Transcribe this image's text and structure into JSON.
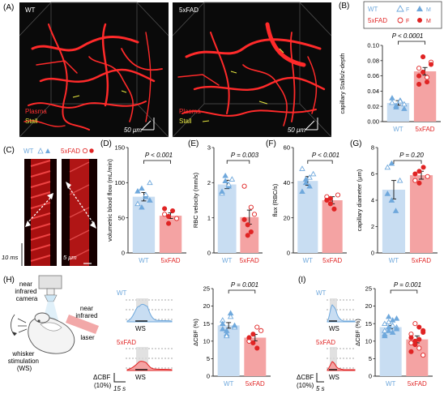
{
  "panels": {
    "A": "(A)",
    "B": "(B)",
    "C": "(C)",
    "D": "(D)",
    "E": "(E)",
    "F": "(F)",
    "G": "(G)",
    "H": "(H)",
    "I": "(I)"
  },
  "colors": {
    "wt": "#6fa8dc",
    "wt_light": "#c8ddf2",
    "fad": "#e02424",
    "fad_light": "#f4a3a3",
    "plasma": "#ff2222",
    "stall": "#e8e840"
  },
  "image_a": {
    "wt_label": "WT",
    "fad_label": "5xFAD",
    "plasma_label": "Plasma",
    "stall_label": "Stall",
    "scale_label": "50 μm"
  },
  "legend_b": {
    "wt": "WT",
    "fad": "5xFAD",
    "female": "F",
    "male": "M"
  },
  "legend_c": {
    "wt": "WT",
    "fad": "5xFAD"
  },
  "image_c": {
    "time_scale": "10 ms",
    "space_scale": "5 μm"
  },
  "image_h": {
    "camera": [
      "near",
      "infrared",
      "camera"
    ],
    "laser": [
      "near",
      "infrared",
      "laser"
    ],
    "whisker": [
      "whisker",
      "stimulation",
      "(WS)"
    ]
  },
  "traces": {
    "wt": "WT",
    "fad": "5xFAD",
    "ws": "WS",
    "y_unit": [
      "ΔCBF",
      "(10%)"
    ],
    "time_h": "15 s",
    "time_i": "5 s"
  },
  "chart_data": [
    {
      "panel": "B",
      "type": "bar",
      "categories": [
        "WT",
        "5xFAD"
      ],
      "values": [
        0.0245,
        0.066
      ],
      "errors": [
        0.003,
        0.005
      ],
      "points": [
        [
          0.025,
          0.019,
          0.028,
          0.023,
          0.031,
          0.021,
          0.027,
          0.017
        ],
        [
          0.07,
          0.085,
          0.052,
          0.078,
          0.06,
          0.065,
          0.058,
          0.075,
          0.049
        ]
      ],
      "ylabel": "capillary Stalls/z-depth",
      "ylim": [
        0,
        0.1
      ],
      "yticks": [
        "0.00",
        "0.02",
        "0.04",
        "0.06",
        "0.08",
        "0.10"
      ],
      "annotation": "P < 0.0001"
    },
    {
      "panel": "D",
      "type": "bar",
      "categories": [
        "WT",
        "5xFAD"
      ],
      "values": [
        80,
        53
      ],
      "errors": [
        6,
        4
      ],
      "points": [
        [
          70,
          92,
          80,
          100,
          88,
          65,
          83,
          75
        ],
        [
          55,
          42,
          60,
          49,
          63,
          52
        ]
      ],
      "ylabel": "volumetric blood flow (mL/min)",
      "ylim": [
        0,
        150
      ],
      "yticks": [
        "0",
        "50",
        "100",
        "150"
      ],
      "annotation": "P < 0.001"
    },
    {
      "panel": "E",
      "type": "bar",
      "categories": [
        "WT",
        "5xFAD"
      ],
      "values": [
        1.95,
        1.02
      ],
      "errors": [
        0.12,
        0.2
      ],
      "points": [
        [
          1.7,
          2.2,
          1.9,
          2.1,
          1.75,
          2.05,
          1.95
        ],
        [
          1.9,
          0.8,
          0.6,
          1.1,
          0.95,
          0.5,
          1.3
        ]
      ],
      "ylabel": "RBC velocity (mm/s)",
      "ylim": [
        0,
        3
      ],
      "yticks": [
        "0",
        "1",
        "2",
        "3"
      ],
      "annotation": "P = 0.003"
    },
    {
      "panel": "F",
      "type": "bar",
      "categories": [
        "WT",
        "5xFAD"
      ],
      "values": [
        41,
        30
      ],
      "errors": [
        2.5,
        2
      ],
      "points": [
        [
          48,
          42,
          38,
          45,
          35,
          40,
          43
        ],
        [
          32,
          28,
          25,
          33,
          30,
          31
        ]
      ],
      "ylabel": "flux (RBC/s)",
      "ylim": [
        0,
        60
      ],
      "yticks": [
        "0",
        "20",
        "40",
        "60"
      ],
      "annotation": "P < 0.001"
    },
    {
      "panel": "G",
      "type": "bar",
      "categories": [
        "WT",
        "5xFAD"
      ],
      "values": [
        4.8,
        5.9
      ],
      "errors": [
        0.7,
        0.3
      ],
      "points": [
        [
          6.5,
          4.0,
          3.2,
          5.5,
          4.5,
          6.8
        ],
        [
          5.5,
          6.2,
          6.5,
          5.8,
          6.0,
          5.3
        ]
      ],
      "ylabel": "capillary diameter (μm)",
      "ylim": [
        0,
        8
      ],
      "yticks": [
        "0",
        "2",
        "4",
        "6",
        "8"
      ],
      "annotation": "P = 0.20"
    },
    {
      "panel": "H",
      "type": "bar",
      "categories": [
        "WT",
        "5xFAD"
      ],
      "values": [
        14.5,
        11
      ],
      "errors": [
        0.8,
        0.9
      ],
      "points": [
        [
          16,
          13,
          18,
          14,
          15,
          12,
          17,
          14.5,
          13.5,
          11.5
        ],
        [
          10,
          12,
          8,
          13,
          11,
          9.5,
          14
        ]
      ],
      "ylabel": "ΔCBF (%)",
      "ylim": [
        0,
        25
      ],
      "yticks": [
        "0",
        "5",
        "10",
        "15",
        "20",
        "25"
      ],
      "annotation": "P = 0.001"
    },
    {
      "panel": "I",
      "type": "bar",
      "categories": [
        "WT",
        "5xFAD"
      ],
      "values": [
        14,
        10.5
      ],
      "errors": [
        0.5,
        1
      ],
      "points": [
        [
          15,
          13,
          16,
          14,
          12,
          17,
          14.5,
          13.5,
          11.5,
          15.5,
          12.5,
          16.5,
          13,
          14
        ],
        [
          12,
          9,
          14,
          6,
          11,
          10,
          8,
          13,
          7,
          15,
          10.5,
          12.5,
          9.5
        ]
      ],
      "ylabel": "ΔCBF (%)",
      "ylim": [
        0,
        25
      ],
      "yticks": [
        "0",
        "5",
        "10",
        "15",
        "20",
        "25"
      ],
      "annotation": "P = 0.001"
    }
  ]
}
